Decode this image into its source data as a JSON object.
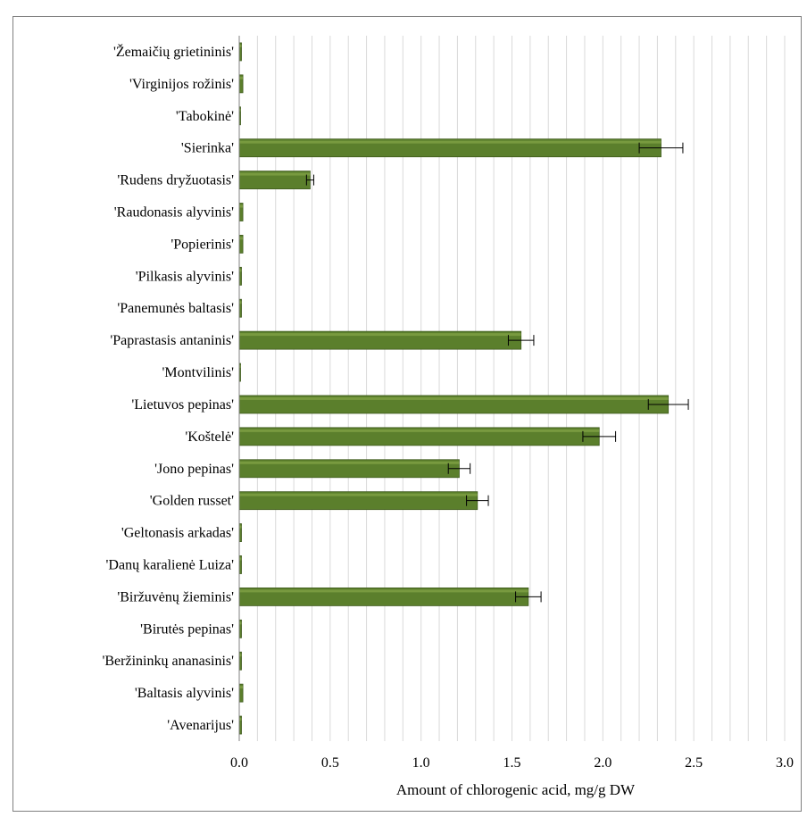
{
  "chart_data": {
    "type": "bar",
    "orientation": "horizontal",
    "title": "",
    "xlabel": "Amount of chlorogenic acid, mg/g DW",
    "ylabel": "",
    "xlim": [
      0,
      3.0
    ],
    "x_ticks": [
      "0.0",
      "0.5",
      "1.0",
      "1.5",
      "2.0",
      "2.5",
      "3.0"
    ],
    "grid": "vertical",
    "legend": "none",
    "bar_color": "#5b7f2c",
    "categories": [
      "'Žemaičių grietininis'",
      "'Virginijos rožinis'",
      "'Tabokinė'",
      "'Sierinka'",
      "'Rudens dryžuotasis'",
      "'Raudonasis alyvinis'",
      "'Popierinis'",
      "'Pilkasis alyvinis'",
      "'Panemunės baltasis'",
      "'Paprastasis antaninis'",
      "'Montvilinis'",
      "'Lietuvos pepinas'",
      "'Koštelė'",
      "'Jono pepinas'",
      "'Golden russet'",
      "'Geltonasis arkadas'",
      "'Danų karalienė Luiza'",
      "'Biržuvėnų žieminis'",
      "'Birutės pepinas'",
      "'Beržininkų ananasinis'",
      "'Baltasis alyvinis'",
      "'Avenarijus'"
    ],
    "values": [
      0.01,
      0.02,
      0.0,
      2.32,
      0.39,
      0.02,
      0.02,
      0.01,
      0.01,
      1.55,
      0.0,
      2.36,
      1.98,
      1.21,
      1.31,
      0.01,
      0.01,
      1.59,
      0.01,
      0.01,
      0.02,
      0.01
    ],
    "errors": [
      0.0,
      0.0,
      0.0,
      0.12,
      0.02,
      0.0,
      0.0,
      0.0,
      0.0,
      0.07,
      0.0,
      0.11,
      0.09,
      0.06,
      0.06,
      0.0,
      0.0,
      0.07,
      0.0,
      0.0,
      0.0,
      0.0
    ]
  }
}
